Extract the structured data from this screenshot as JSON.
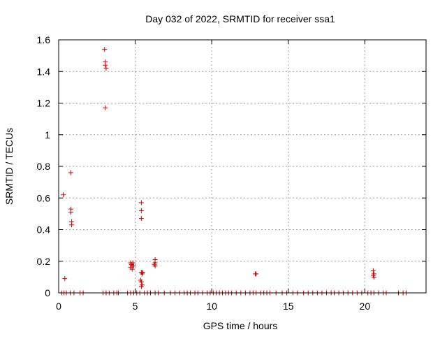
{
  "chart_data": {
    "type": "scatter",
    "title": "Day 032 of 2022, SRMTID for receiver ssa1",
    "xlabel": "GPS time / hours",
    "ylabel": "SRMTID / TECUs",
    "xlim": [
      0,
      24
    ],
    "ylim": [
      0,
      1.6
    ],
    "xticks": [
      0,
      5,
      10,
      15,
      20
    ],
    "yticks": [
      0,
      0.2,
      0.4,
      0.6,
      0.8,
      1,
      1.2,
      1.4,
      1.6
    ],
    "xtick_labels": [
      "0",
      "5",
      "10",
      "15",
      "20"
    ],
    "ytick_labels": [
      "0",
      "0.2",
      "0.4",
      "0.6",
      "0.8",
      "1",
      "1.2",
      "1.4",
      "1.6"
    ],
    "grid": true,
    "marker": "+",
    "marker_color": "#cc0000",
    "series": [
      {
        "name": "ssa1",
        "points": [
          [
            0.3,
            0.62
          ],
          [
            0.4,
            0.09
          ],
          [
            0.8,
            0.76
          ],
          [
            0.8,
            0.53
          ],
          [
            0.8,
            0.51
          ],
          [
            0.85,
            0.45
          ],
          [
            0.85,
            0.43
          ],
          [
            3.0,
            1.54
          ],
          [
            3.05,
            1.46
          ],
          [
            3.05,
            1.44
          ],
          [
            3.1,
            1.42
          ],
          [
            3.05,
            1.17
          ],
          [
            4.7,
            0.19
          ],
          [
            4.75,
            0.18
          ],
          [
            4.8,
            0.17
          ],
          [
            4.7,
            0.16
          ],
          [
            4.8,
            0.15
          ],
          [
            4.85,
            0.19
          ],
          [
            4.9,
            0.17
          ],
          [
            5.4,
            0.57
          ],
          [
            5.4,
            0.52
          ],
          [
            5.4,
            0.47
          ],
          [
            5.4,
            0.13
          ],
          [
            5.45,
            0.12
          ],
          [
            5.5,
            0.13
          ],
          [
            5.35,
            0.08
          ],
          [
            5.4,
            0.07
          ],
          [
            5.45,
            0.05
          ],
          [
            5.4,
            0.04
          ],
          [
            6.3,
            0.21
          ],
          [
            6.3,
            0.19
          ],
          [
            6.25,
            0.18
          ],
          [
            6.3,
            0.17
          ],
          [
            12.85,
            0.12
          ],
          [
            12.9,
            0.12
          ],
          [
            20.55,
            0.14
          ],
          [
            20.6,
            0.12
          ],
          [
            20.55,
            0.11
          ],
          [
            20.6,
            0.1
          ],
          [
            0.2,
            0
          ],
          [
            0.35,
            0
          ],
          [
            0.5,
            0
          ],
          [
            0.75,
            0
          ],
          [
            1.0,
            0
          ],
          [
            1.4,
            0
          ],
          [
            1.6,
            0
          ],
          [
            2.9,
            0
          ],
          [
            3.1,
            0
          ],
          [
            3.3,
            0
          ],
          [
            3.6,
            0
          ],
          [
            3.8,
            0
          ],
          [
            3.9,
            0
          ],
          [
            4.5,
            0
          ],
          [
            4.7,
            0
          ],
          [
            4.9,
            0
          ],
          [
            5.1,
            0
          ],
          [
            5.3,
            0
          ],
          [
            5.6,
            0
          ],
          [
            5.8,
            0
          ],
          [
            6.0,
            0
          ],
          [
            6.3,
            0
          ],
          [
            6.5,
            0
          ],
          [
            6.9,
            0
          ],
          [
            7.3,
            0
          ],
          [
            7.6,
            0
          ],
          [
            7.9,
            0
          ],
          [
            8.2,
            0
          ],
          [
            8.4,
            0
          ],
          [
            8.6,
            0
          ],
          [
            8.9,
            0
          ],
          [
            9.1,
            0
          ],
          [
            9.4,
            0
          ],
          [
            9.7,
            0
          ],
          [
            9.9,
            0
          ],
          [
            10.1,
            0
          ],
          [
            10.3,
            0
          ],
          [
            10.5,
            0
          ],
          [
            10.7,
            0
          ],
          [
            10.9,
            0
          ],
          [
            11.1,
            0
          ],
          [
            11.3,
            0
          ],
          [
            11.6,
            0
          ],
          [
            11.9,
            0
          ],
          [
            12.2,
            0
          ],
          [
            12.5,
            0
          ],
          [
            12.7,
            0
          ],
          [
            12.9,
            0
          ],
          [
            13.2,
            0
          ],
          [
            13.4,
            0
          ],
          [
            13.6,
            0
          ],
          [
            13.8,
            0
          ],
          [
            14.2,
            0
          ],
          [
            14.6,
            0
          ],
          [
            14.9,
            0
          ],
          [
            15.3,
            0
          ],
          [
            15.6,
            0
          ],
          [
            16.0,
            0
          ],
          [
            16.3,
            0
          ],
          [
            16.6,
            0
          ],
          [
            16.9,
            0
          ],
          [
            17.2,
            0
          ],
          [
            17.5,
            0
          ],
          [
            17.8,
            0
          ],
          [
            18.0,
            0
          ],
          [
            18.3,
            0
          ],
          [
            18.6,
            0
          ],
          [
            18.9,
            0
          ],
          [
            19.2,
            0
          ],
          [
            19.5,
            0
          ],
          [
            19.8,
            0
          ],
          [
            20.2,
            0
          ],
          [
            20.4,
            0
          ],
          [
            20.6,
            0
          ],
          [
            20.9,
            0
          ],
          [
            21.2,
            0
          ],
          [
            21.4,
            0
          ],
          [
            22.2,
            0
          ],
          [
            22.5,
            0
          ],
          [
            22.7,
            0
          ]
        ]
      }
    ]
  }
}
